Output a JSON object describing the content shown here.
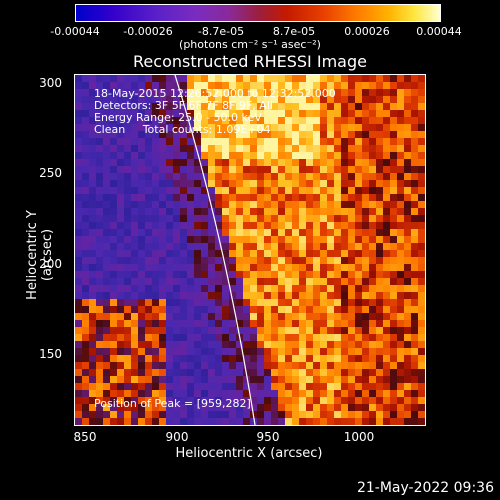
{
  "colorbar": {
    "ticks": [
      "-0.00044",
      "-0.00026",
      "-8.7e-05",
      "8.7e-05",
      "0.00026",
      "0.00044"
    ],
    "units": "(photons cm⁻² s⁻¹ asec⁻²)"
  },
  "title": "Reconstructed RHESSI Image",
  "info": {
    "time": "18-May-2015 12:26:52.000 to 12:32:52.000",
    "detectors": "Detectors: 3F 5F 6F 7F 8F 9F, All",
    "energy": "Energy Range: 25.0 - 50.0 keV",
    "method": "Clean     Total counts: 1.09E+04",
    "peak": "Position of Peak = [959,282]"
  },
  "axes": {
    "xlabel": "Heliocentric X (arcsec)",
    "ylabel": "Heliocentric Y (arcsec)",
    "xticks": [
      "850",
      "900",
      "950",
      "1000"
    ],
    "yticks": [
      "300",
      "250",
      "200",
      "150"
    ],
    "xlim": [
      843,
      1035
    ],
    "ylim": [
      110,
      305
    ]
  },
  "datestamp": "21-May-2022 09:36"
}
